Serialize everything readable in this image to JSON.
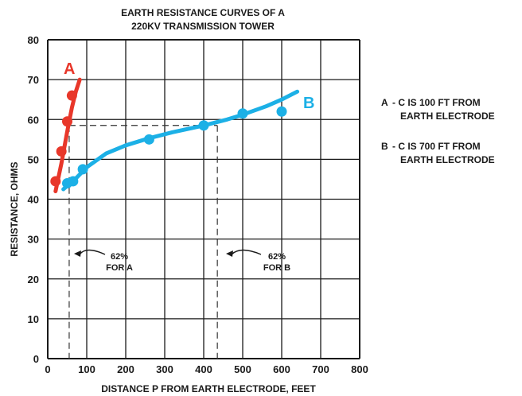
{
  "colors": {
    "series_a": "#e8372a",
    "series_b": "#1cb0e6",
    "grid": "#1a1a1a",
    "text": "#1a1a1a"
  },
  "chart_data": {
    "type": "line",
    "title_lines": [
      "EARTH RESISTANCE CURVES OF A",
      "220KV TRANSMISSION TOWER"
    ],
    "xlabel": "DISTANCE P FROM EARTH ELECTRODE, FEET",
    "ylabel": "RESISTANCE, OHMS",
    "xlim": [
      0,
      800
    ],
    "ylim": [
      0,
      80
    ],
    "xticks": [
      0,
      100,
      200,
      300,
      400,
      500,
      600,
      700,
      800
    ],
    "yticks": [
      0,
      10,
      20,
      30,
      40,
      50,
      60,
      70,
      80
    ],
    "grid": true,
    "legend_position": "right",
    "series": [
      {
        "name": "A",
        "legend_key": "A",
        "legend_lines": [
          "- C IS 100 FT FROM",
          "EARTH ELECTRODE"
        ],
        "curve": [
          [
            20,
            42
          ],
          [
            35,
            49
          ],
          [
            50,
            57
          ],
          [
            62,
            63
          ],
          [
            72,
            67
          ],
          [
            82,
            70
          ]
        ],
        "points": [
          [
            20,
            44.5
          ],
          [
            35,
            52
          ],
          [
            50,
            59.5
          ],
          [
            62,
            66
          ]
        ]
      },
      {
        "name": "B",
        "legend_key": "B",
        "legend_lines": [
          "- C IS 700 FT FROM",
          "EARTH ELECTRODE"
        ],
        "curve": [
          [
            40,
            42.5
          ],
          [
            75,
            45.5
          ],
          [
            100,
            48
          ],
          [
            150,
            51.5
          ],
          [
            200,
            53.5
          ],
          [
            260,
            55.3
          ],
          [
            320,
            56.8
          ],
          [
            400,
            58.5
          ],
          [
            460,
            60
          ],
          [
            500,
            61.2
          ],
          [
            560,
            63.3
          ],
          [
            600,
            65
          ],
          [
            640,
            67
          ]
        ],
        "points": [
          [
            50,
            44
          ],
          [
            65,
            44.5
          ],
          [
            90,
            47.5
          ],
          [
            260,
            55
          ],
          [
            400,
            58.5
          ],
          [
            500,
            61.5
          ],
          [
            600,
            62
          ]
        ]
      }
    ],
    "reference_lines": {
      "horizontal_y": 58.5,
      "vertical_x": [
        55,
        435
      ]
    },
    "annotations": [
      {
        "lines": [
          "62%",
          "FOR A"
        ],
        "x": 55
      },
      {
        "lines": [
          "62%",
          "FOR B"
        ],
        "x": 435
      }
    ]
  }
}
